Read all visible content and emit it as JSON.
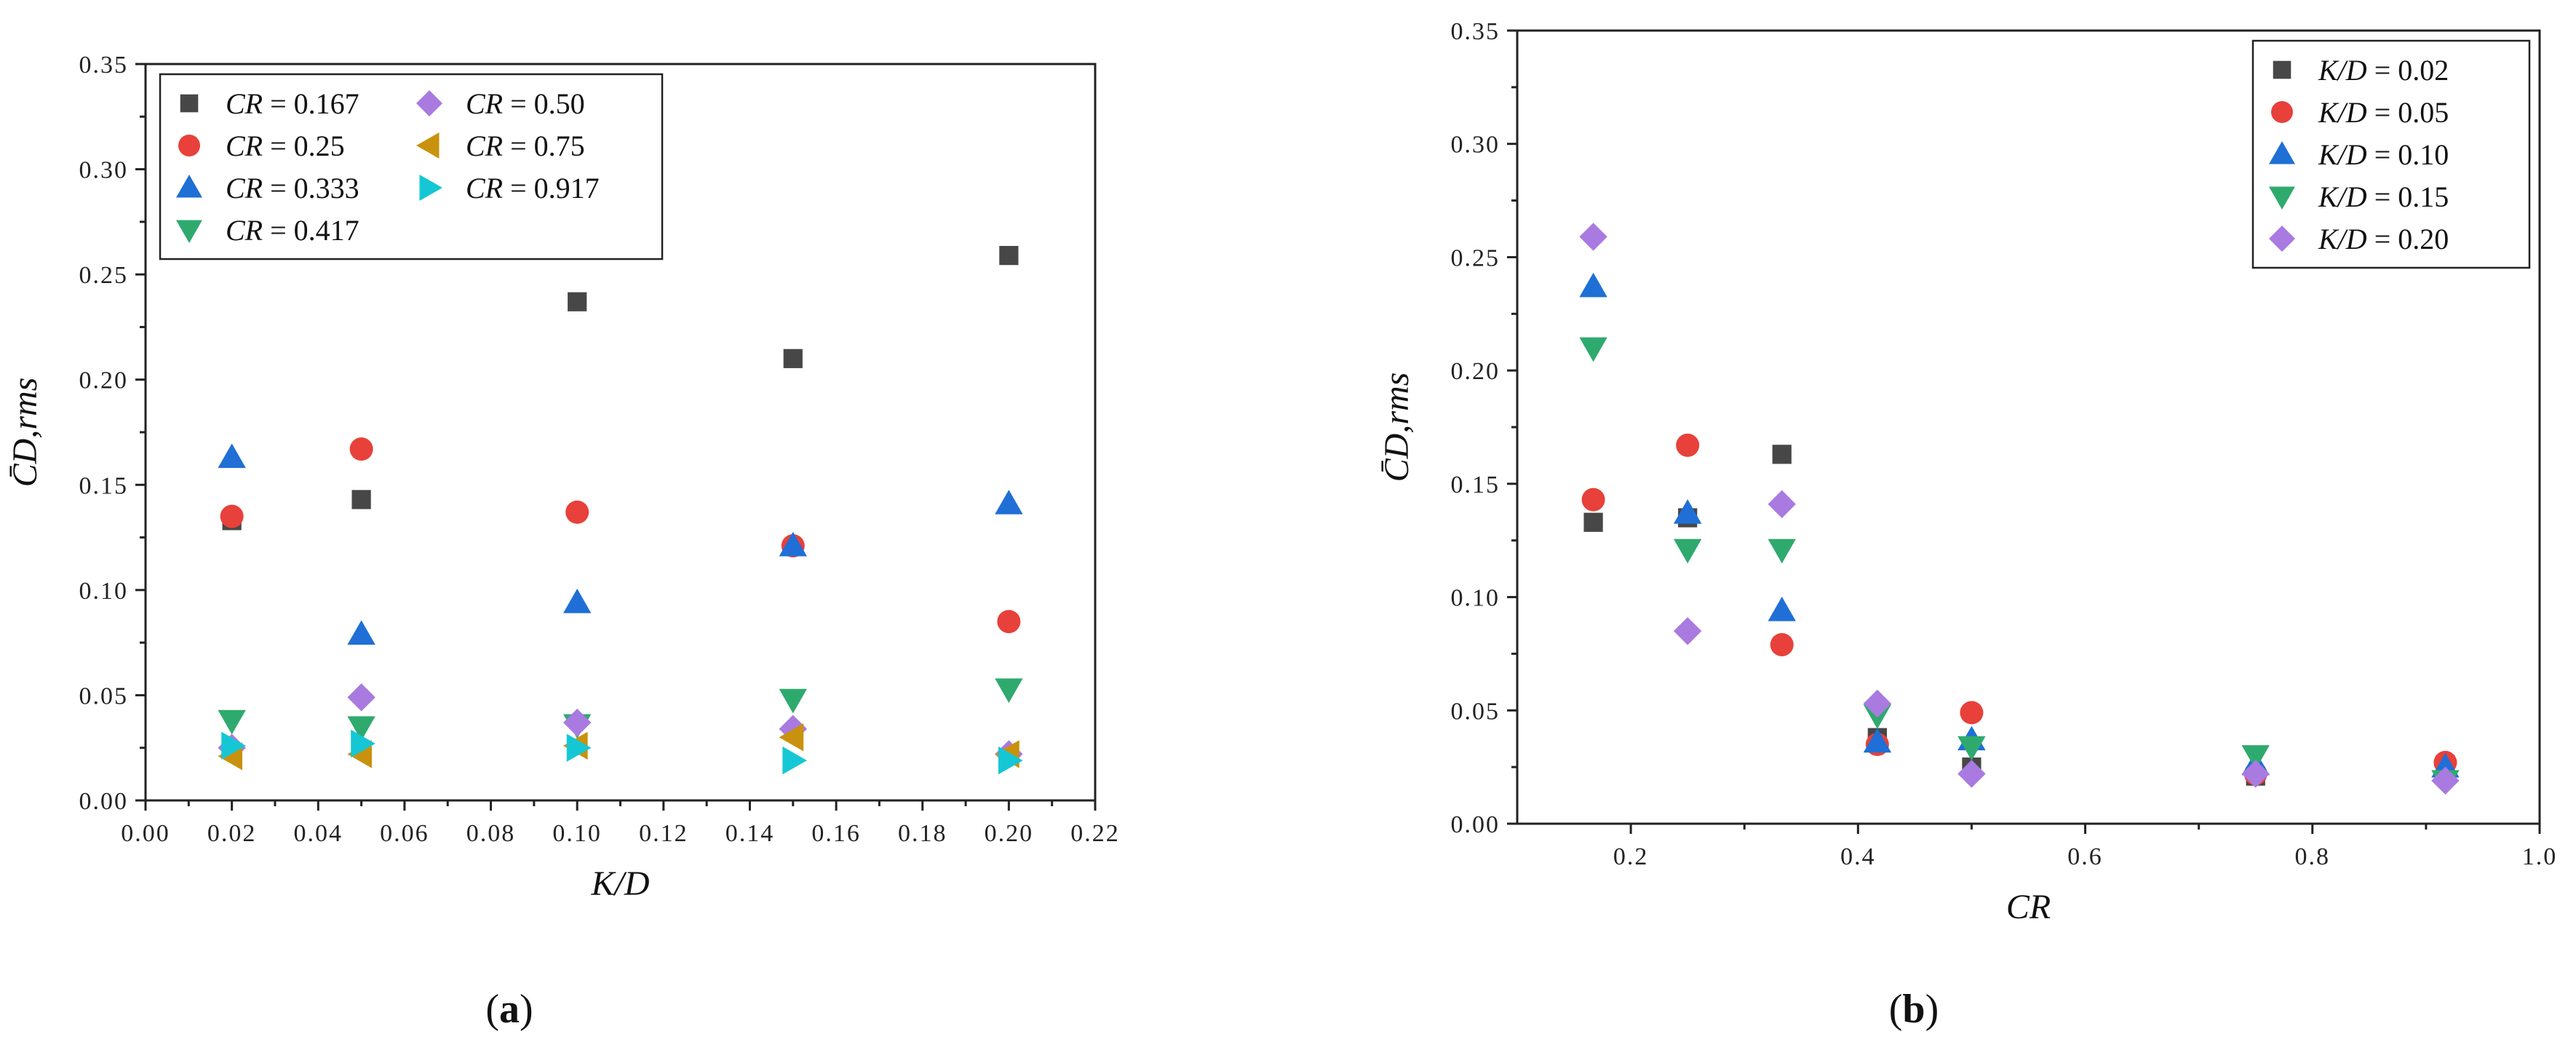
{
  "colors": {
    "dark_gray": "#474747",
    "red": "#e8403a",
    "blue": "#1f6fd6",
    "green": "#2faa6e",
    "violet": "#a97ae0",
    "gold": "#c9920e",
    "cyan": "#15c7d4"
  },
  "chart_data": [
    {
      "type": "scatter",
      "panel_label": "a",
      "xlabel": "K/D",
      "ylabel": "C̄D,rms",
      "xlim": [
        0.0,
        0.22
      ],
      "ylim": [
        0.0,
        0.35
      ],
      "xticks": [
        0.0,
        0.02,
        0.04,
        0.06,
        0.08,
        0.1,
        0.12,
        0.14,
        0.16,
        0.18,
        0.2,
        0.22
      ],
      "xtick_labels": [
        "0.00",
        "0.02",
        "0.04",
        "0.06",
        "0.08",
        "0.10",
        "0.12",
        "0.14",
        "0.16",
        "0.18",
        "0.20",
        "0.22"
      ],
      "yticks": [
        0.0,
        0.05,
        0.1,
        0.15,
        0.2,
        0.25,
        0.3,
        0.35
      ],
      "ytick_labels": [
        "0.00",
        "0.05",
        "0.10",
        "0.15",
        "0.20",
        "0.25",
        "0.30",
        "0.35"
      ],
      "legend_position": "top-left",
      "legend_columns": 2,
      "x": [
        0.02,
        0.05,
        0.1,
        0.15,
        0.2
      ],
      "series": [
        {
          "var": "CR",
          "value": "0.167",
          "marker": "square",
          "color": "#474747",
          "values": [
            0.133,
            0.143,
            0.237,
            0.21,
            0.259
          ]
        },
        {
          "var": "CR",
          "value": "0.25",
          "marker": "circle",
          "color": "#e8403a",
          "values": [
            0.135,
            0.167,
            0.137,
            0.121,
            0.085
          ]
        },
        {
          "var": "CR",
          "value": "0.333",
          "marker": "triangle-up",
          "color": "#1f6fd6",
          "values": [
            0.163,
            0.079,
            0.094,
            0.121,
            0.141
          ]
        },
        {
          "var": "CR",
          "value": "0.417",
          "marker": "triangle-down",
          "color": "#2faa6e",
          "values": [
            0.038,
            0.035,
            0.036,
            0.048,
            0.053
          ]
        },
        {
          "var": "CR",
          "value": "0.50",
          "marker": "diamond",
          "color": "#a97ae0",
          "values": [
            0.025,
            0.049,
            0.037,
            0.034,
            0.022
          ]
        },
        {
          "var": "CR",
          "value": "0.75",
          "marker": "triangle-left",
          "color": "#c9920e",
          "values": [
            0.021,
            0.022,
            0.026,
            0.03,
            0.022
          ]
        },
        {
          "var": "CR",
          "value": "0.917",
          "marker": "triangle-right",
          "color": "#15c7d4",
          "values": [
            0.026,
            0.027,
            0.025,
            0.019,
            0.019
          ]
        }
      ]
    },
    {
      "type": "scatter",
      "panel_label": "b",
      "xlabel": "CR",
      "ylabel": "C̄D,rms",
      "xlim": [
        0.1,
        1.0
      ],
      "ylim": [
        0.0,
        0.35
      ],
      "xticks": [
        0.2,
        0.4,
        0.6,
        0.8,
        1.0
      ],
      "xtick_labels": [
        "0.2",
        "0.4",
        "0.6",
        "0.8",
        "1.0"
      ],
      "yticks": [
        0.0,
        0.05,
        0.1,
        0.15,
        0.2,
        0.25,
        0.3,
        0.35
      ],
      "ytick_labels": [
        "0.00",
        "0.05",
        "0.10",
        "0.15",
        "0.20",
        "0.25",
        "0.30",
        "0.35"
      ],
      "legend_position": "top-right",
      "legend_columns": 1,
      "x": [
        0.167,
        0.25,
        0.333,
        0.417,
        0.5,
        0.75,
        0.917
      ],
      "series": [
        {
          "var": "K/D",
          "value": "0.02",
          "marker": "square",
          "color": "#474747",
          "values": [
            0.133,
            0.135,
            0.163,
            0.038,
            0.025,
            0.021,
            0.026
          ]
        },
        {
          "var": "K/D",
          "value": "0.05",
          "marker": "circle",
          "color": "#e8403a",
          "values": [
            0.143,
            0.167,
            0.079,
            0.035,
            0.049,
            0.022,
            0.027
          ]
        },
        {
          "var": "K/D",
          "value": "0.10",
          "marker": "triangle-up",
          "color": "#1f6fd6",
          "values": [
            0.237,
            0.137,
            0.094,
            0.036,
            0.037,
            0.026,
            0.025
          ]
        },
        {
          "var": "K/D",
          "value": "0.15",
          "marker": "triangle-down",
          "color": "#2faa6e",
          "values": [
            0.21,
            0.121,
            0.121,
            0.048,
            0.034,
            0.03,
            0.019
          ]
        },
        {
          "var": "K/D",
          "value": "0.20",
          "marker": "diamond",
          "color": "#a97ae0",
          "values": [
            0.259,
            0.085,
            0.141,
            0.053,
            0.022,
            0.022,
            0.019
          ]
        }
      ]
    }
  ]
}
